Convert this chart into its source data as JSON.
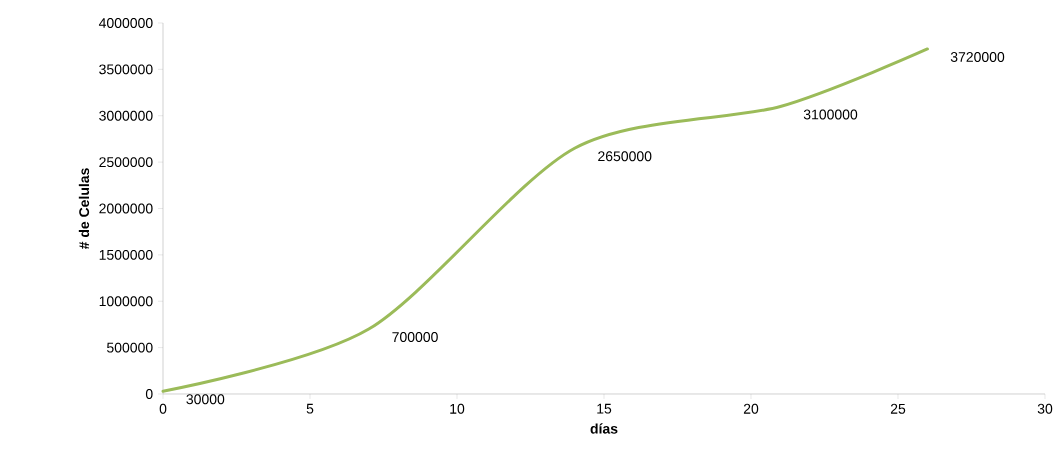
{
  "chart_data": {
    "type": "line",
    "xlabel": "días",
    "ylabel": "# de Celulas",
    "x": [
      0,
      7,
      14,
      21,
      26
    ],
    "series": [
      {
        "color": "#9bbb59",
        "values": [
          30000,
          700000,
          2650000,
          3100000,
          3720000
        ]
      }
    ],
    "xlim": [
      0,
      30
    ],
    "xticks": [
      0,
      5,
      10,
      15,
      20,
      25,
      30
    ],
    "ylim": [
      0,
      4000000
    ],
    "yticks": [
      0,
      500000,
      1000000,
      1500000,
      2000000,
      2500000,
      3000000,
      3500000,
      4000000
    ],
    "data_labels": true,
    "grid": false,
    "marker": "none",
    "line_style": "solid"
  }
}
